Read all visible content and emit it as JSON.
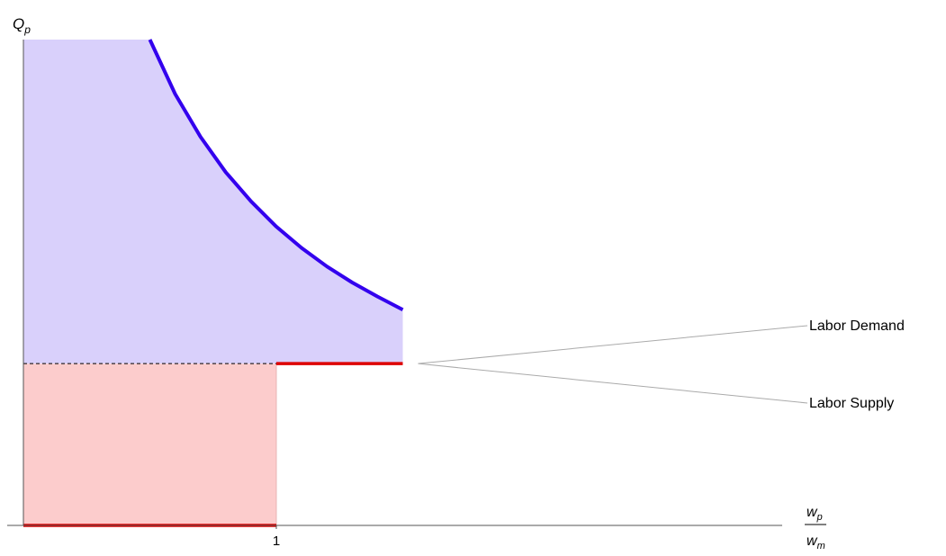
{
  "chart_data": {
    "type": "area",
    "title": "",
    "ylabel": {
      "base": "Q",
      "sub": "p"
    },
    "xlabel": {
      "num_base": "w",
      "num_sub": "p",
      "den_base": "w",
      "den_sub": "m"
    },
    "x_ticks": [
      {
        "value": 1,
        "label": "1"
      }
    ],
    "xlim": [
      0,
      3
    ],
    "ylim": [
      0,
      1
    ],
    "grid": false,
    "colors": {
      "demand": "#3300ee",
      "supply": "#dd0000",
      "demand_fill": "#d9d0fb",
      "supply_fill": "#fccccc",
      "axis": "#555555",
      "callout": "#aaaaaa"
    },
    "labor_demand": {
      "label": "Labor Demand",
      "points": [
        [
          0.5,
          1.0
        ],
        [
          0.6,
          0.888
        ],
        [
          0.7,
          0.8
        ],
        [
          0.8,
          0.727
        ],
        [
          0.9,
          0.667
        ],
        [
          1.0,
          0.615
        ],
        [
          1.1,
          0.571
        ],
        [
          1.2,
          0.533
        ],
        [
          1.3,
          0.5
        ],
        [
          1.4,
          0.471
        ],
        [
          1.5,
          0.444
        ]
      ]
    },
    "labor_supply": {
      "label": "Labor Supply",
      "segments": [
        {
          "x": [
            0,
            1
          ],
          "y": 0
        },
        {
          "x": [
            1,
            1.5
          ],
          "y": 0.333
        }
      ]
    },
    "equilibrium_level": 0.333
  }
}
